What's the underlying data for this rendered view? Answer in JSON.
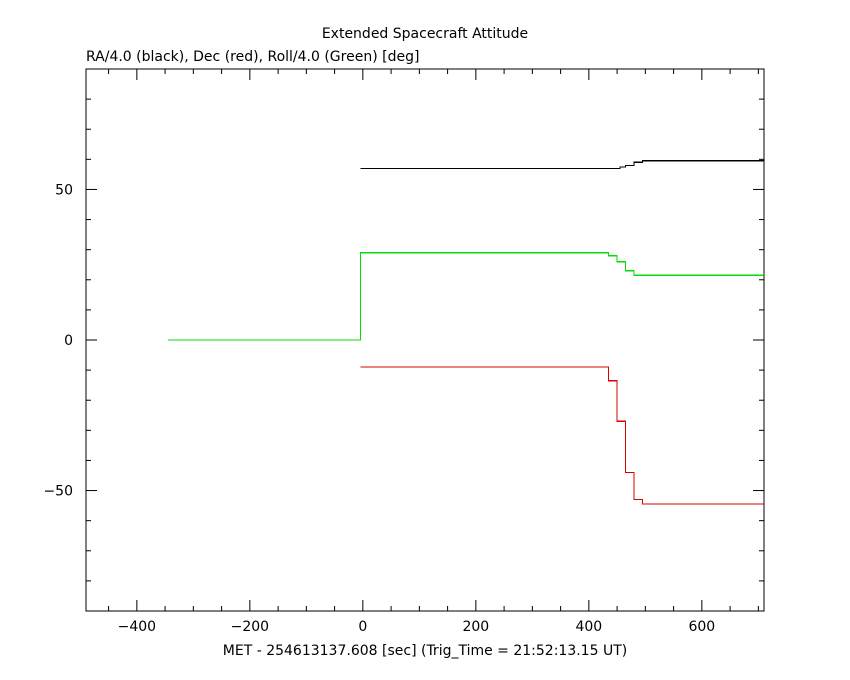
{
  "chart_data": {
    "type": "line",
    "title": "Extended Spacecraft Attitude",
    "subtitle": "RA/4.0 (black), Dec (red), Roll/4.0 (Green) [deg]",
    "xlabel": "MET - 254613137.608 [sec] (Trig_Time = 21:52:13.15 UT)",
    "ylabel": "",
    "xlim": [
      -490,
      710
    ],
    "ylim": [
      -90,
      90
    ],
    "xticks": [
      -400,
      -200,
      0,
      200,
      400,
      600
    ],
    "yticks": [
      -50,
      0,
      50
    ],
    "xtick_labels": [
      "−400",
      "−200",
      "0",
      "200",
      "400",
      "600"
    ],
    "ytick_labels": [
      "−50",
      "0",
      "50"
    ],
    "grid": false,
    "series": [
      {
        "color": "#000000",
        "step": true,
        "points": [
          [
            -4,
            57
          ],
          [
            455,
            57.5
          ],
          [
            465,
            58
          ],
          [
            480,
            59
          ],
          [
            495,
            59.5
          ],
          [
            710,
            59.5
          ]
        ]
      },
      {
        "color": "#dd0000",
        "step": true,
        "points": [
          [
            -4,
            -9
          ],
          [
            435,
            -13.5
          ],
          [
            450,
            -27
          ],
          [
            465,
            -44
          ],
          [
            480,
            -53
          ],
          [
            495,
            -54.5
          ],
          [
            710,
            -54.5
          ]
        ]
      },
      {
        "color": "#00dd00",
        "step": true,
        "points": [
          [
            -345,
            0
          ],
          [
            -4,
            29
          ],
          [
            435,
            28
          ],
          [
            450,
            26
          ],
          [
            465,
            23
          ],
          [
            480,
            21.5
          ],
          [
            710,
            21.5
          ]
        ]
      }
    ]
  }
}
